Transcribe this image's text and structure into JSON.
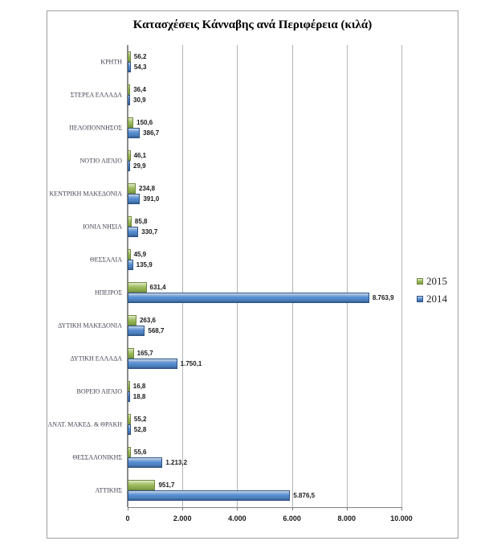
{
  "chart_data": {
    "type": "bar",
    "orientation": "horizontal",
    "title": "Κατασχέσεις Κάνναβης ανά Περιφέρεια (κιλά)",
    "unit": "κιλά",
    "categories": [
      "ΚΡΗΤΗ",
      "ΣΤΕΡΕΑ ΕΛΛΑΔΑ",
      "ΠΕΛΟΠΟΝΝΗΣΟΣ",
      "ΝΟΤΙΟ ΑΙΓΑΙΟ",
      "ΚΕΝΤΡΙΚΗ ΜΑΚΕΔΟΝΙΑ",
      "ΙΟΝΙΑ ΝΗΣΙΑ",
      "ΘΕΣΣΑΛΙΑ",
      "ΗΠΕΙΡΟΣ",
      "ΔΥΤΙΚΗ ΜΑΚΕΔΟΝΙΑ",
      "ΔΥΤΙΚΗ ΕΛΛΑΔΑ",
      "ΒΟΡΕΙΟ ΑΙΓΑΙΟ",
      "ΑΝΑΤ. ΜΑΚΕΔ. & ΘΡΑΚΗ",
      "ΘΕΣΣΑΛΟΝΙΚΗΣ",
      "ΑΤΤΙΚΗΣ"
    ],
    "series": [
      {
        "name": "2015",
        "color": "#9bbb59",
        "values": [
          56.2,
          36.4,
          150.6,
          46.1,
          234.8,
          85.8,
          45.9,
          631.4,
          263.6,
          165.7,
          16.8,
          55.2,
          55.6,
          951.7
        ],
        "labels": [
          "56,2",
          "36,4",
          "150,6",
          "46,1",
          "234,8",
          "85,8",
          "45,9",
          "631,4",
          "263,6",
          "165,7",
          "16,8",
          "55,2",
          "55,6",
          "951,7"
        ]
      },
      {
        "name": "2014",
        "color": "#4f81bd",
        "values": [
          54.3,
          30.9,
          386.7,
          29.9,
          391.0,
          330.7,
          135.9,
          8763.9,
          568.7,
          1750.1,
          18.8,
          52.8,
          1213.2,
          5876.5
        ],
        "labels": [
          "54,3",
          "30,9",
          "386,7",
          "29,9",
          "391,0",
          "330,7",
          "135,9",
          "8.763,9",
          "568,7",
          "1.750,1",
          "18,8",
          "52,8",
          "1.213,2",
          "5.876,5"
        ]
      }
    ],
    "xlim": [
      0,
      10000
    ],
    "xticks": [
      {
        "value": 0,
        "label": "0"
      },
      {
        "value": 2000,
        "label": "2.000"
      },
      {
        "value": 4000,
        "label": "4.000"
      },
      {
        "value": 6000,
        "label": "6.000"
      },
      {
        "value": 8000,
        "label": "8.000"
      },
      {
        "value": 10000,
        "label": "10.000"
      }
    ],
    "grid": true,
    "legend_position": "right"
  }
}
